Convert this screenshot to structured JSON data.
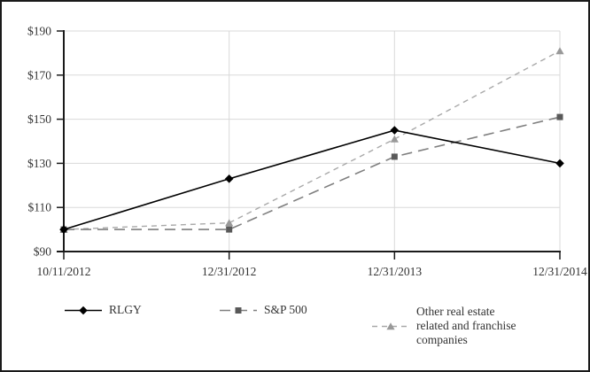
{
  "chart_data": {
    "type": "line",
    "x_labels": [
      "10/11/2012",
      "12/31/2012",
      "12/31/2013",
      "12/31/2014"
    ],
    "series": [
      {
        "id": "rlgy",
        "name": "RLGY",
        "values": [
          100,
          123,
          145,
          130
        ],
        "color": "#000000",
        "marker": "diamond",
        "marker_color": "#000000",
        "dash": "solid",
        "width": 1.6
      },
      {
        "id": "sp500",
        "name": "S&P 500",
        "values": [
          100,
          100,
          133,
          151
        ],
        "color": "#7f7f7f",
        "marker": "square",
        "marker_color": "#595959",
        "dash": "long-dash",
        "width": 1.6
      },
      {
        "id": "other",
        "name": "Other real estate related and franchise companies",
        "values": [
          100,
          103,
          141,
          181
        ],
        "color": "#a9a9a9",
        "marker": "triangle",
        "marker_color": "#999999",
        "dash": "short-dash",
        "width": 1.4
      }
    ],
    "ylim": [
      90,
      190
    ],
    "ytick_step": 20,
    "ytick_labels": [
      "$90",
      "$110",
      "$130",
      "$150",
      "$170",
      "$190"
    ],
    "title": "",
    "xlabel": "",
    "ylabel": "",
    "grid": true,
    "grid_color": "#d9d9d9",
    "axis_color": "#1a1a1a",
    "legend_position": "bottom"
  },
  "legend": {
    "items": [
      {
        "lines": [
          "RLGY"
        ]
      },
      {
        "lines": [
          "S&P 500"
        ]
      },
      {
        "lines": [
          "Other real estate",
          "related and franchise",
          "companies"
        ]
      }
    ]
  }
}
